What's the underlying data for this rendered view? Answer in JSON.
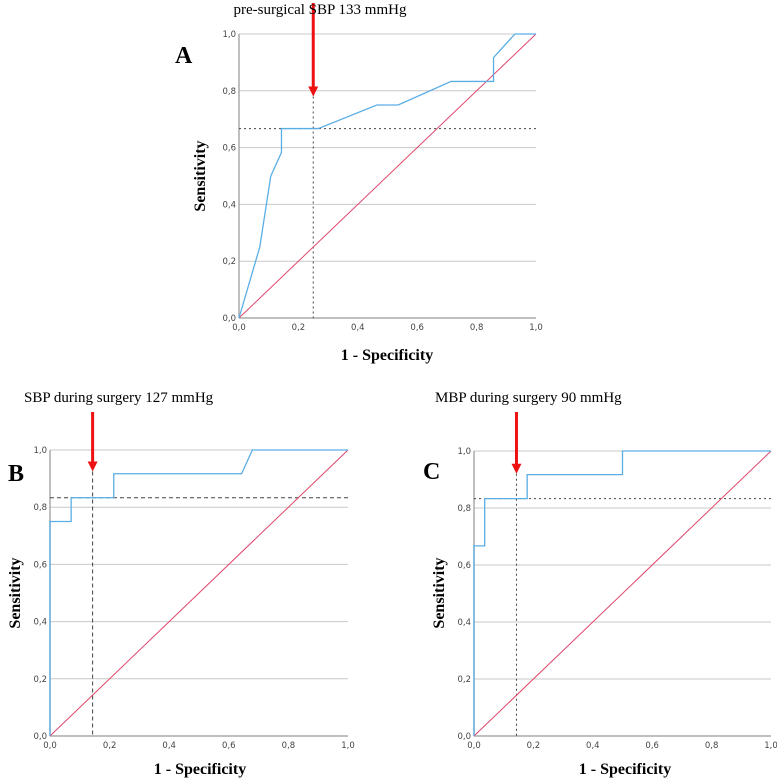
{
  "colors": {
    "roc": "#5aaee6",
    "reference": "#e0476b",
    "arrow": "#ee1111",
    "grid": "#c8c8c8",
    "cutoff": "#444444"
  },
  "chart_data": [
    {
      "type": "line",
      "panel_label": "A",
      "title": "pre-surgical SBP 133 mmHg",
      "xlabel": "1 - Specificity",
      "ylabel": "Sensitivity",
      "xlim": [
        0,
        1
      ],
      "ylim": [
        0,
        1
      ],
      "xticks": [
        "0,0",
        "0,2",
        "0,4",
        "0,6",
        "0,8",
        "1,0"
      ],
      "yticks": [
        "0,0",
        "0,2",
        "0,4",
        "0,6",
        "0,8",
        "1,0"
      ],
      "grid": "horizontal",
      "roc": [
        [
          0,
          0
        ],
        [
          0.07,
          0.25
        ],
        [
          0.107,
          0.5
        ],
        [
          0.143,
          0.583
        ],
        [
          0.143,
          0.667
        ],
        [
          0.267,
          0.667
        ],
        [
          0.464,
          0.75
        ],
        [
          0.536,
          0.75
        ],
        [
          0.714,
          0.833
        ],
        [
          0.857,
          0.833
        ],
        [
          0.857,
          0.917
        ],
        [
          0.929,
          1
        ],
        [
          1,
          1
        ]
      ],
      "reference": [
        [
          0,
          0
        ],
        [
          1,
          1
        ]
      ],
      "cutoff": {
        "x": 0.25,
        "y": 0.667,
        "style": "dotted"
      },
      "arrow_tip_y": 0.78
    },
    {
      "type": "line",
      "panel_label": "B",
      "title": "SBP during surgery 127 mmHg",
      "xlabel": "1 - Specificity",
      "ylabel": "Sensitivity",
      "xlim": [
        0,
        1
      ],
      "ylim": [
        0,
        1
      ],
      "xticks": [
        "0,0",
        "0,2",
        "0,4",
        "0,6",
        "0,8",
        "1,0"
      ],
      "yticks": [
        "0,0",
        "0,2",
        "0,4",
        "0,6",
        "0,8",
        "1,0"
      ],
      "grid": "horizontal",
      "roc": [
        [
          0,
          0
        ],
        [
          0,
          0.75
        ],
        [
          0.071,
          0.75
        ],
        [
          0.071,
          0.833
        ],
        [
          0.214,
          0.833
        ],
        [
          0.214,
          0.917
        ],
        [
          0.643,
          0.917
        ],
        [
          0.679,
          1
        ],
        [
          1,
          1
        ]
      ],
      "reference": [
        [
          0,
          0
        ],
        [
          1,
          1
        ]
      ],
      "cutoff": {
        "x": 0.143,
        "y": 0.833,
        "style": "dashed"
      },
      "arrow_tip_y": 0.925
    },
    {
      "type": "line",
      "panel_label": "C",
      "title": "MBP during surgery 90 mmHg",
      "xlabel": "1 - Specificity",
      "ylabel": "Sensitivity",
      "xlim": [
        0,
        1
      ],
      "ylim": [
        0,
        1
      ],
      "xticks": [
        "0,0",
        "0,2",
        "0,4",
        "0,6",
        "0,8",
        "1,0"
      ],
      "yticks": [
        "0,0",
        "0,2",
        "0,4",
        "0,6",
        "0,8",
        "1,0"
      ],
      "grid": "horizontal",
      "roc": [
        [
          0,
          0
        ],
        [
          0,
          0.667
        ],
        [
          0.036,
          0.667
        ],
        [
          0.036,
          0.833
        ],
        [
          0.179,
          0.833
        ],
        [
          0.179,
          0.917
        ],
        [
          0.5,
          0.917
        ],
        [
          0.5,
          1
        ],
        [
          1,
          1
        ]
      ],
      "reference": [
        [
          0,
          0
        ],
        [
          1,
          1
        ]
      ],
      "cutoff": {
        "x": 0.143,
        "y": 0.833,
        "style": "dotted"
      },
      "arrow_tip_y": 0.92
    }
  ]
}
